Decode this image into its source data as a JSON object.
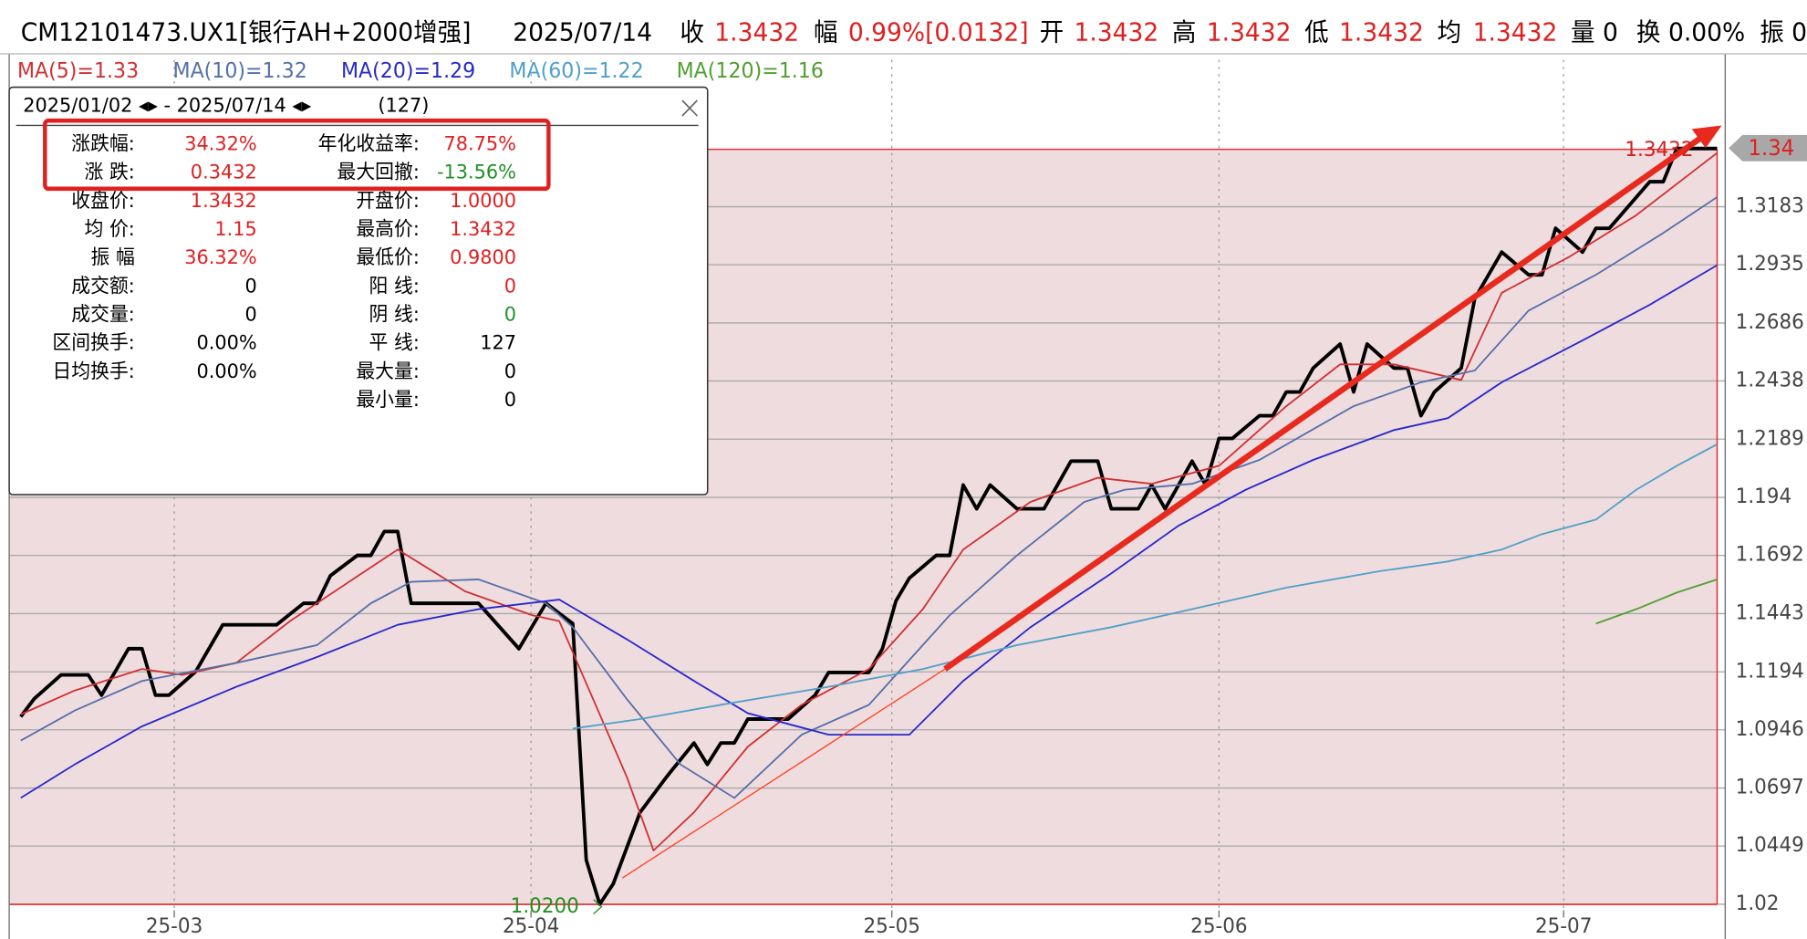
{
  "header": [
    "CM12101473.UX1[银行AH+2000增强]",
    "2025/07/14",
    "收",
    "1.3432",
    "幅",
    "0.99%[0.0132]",
    "开",
    "1.3432",
    "高",
    "1.3432",
    "低",
    "1.3432",
    "均",
    "1.3432",
    "量 0",
    "换 0.00%",
    "振 0"
  ],
  "panel": {
    "title": "2025/01/02 ◂▸ - 2025/07/14 ◂▸",
    "count": "(127)",
    "rows": [
      [
        "涨跌幅:",
        "34.32%",
        "年化收益率:",
        "78.75%"
      ],
      [
        "涨  跌:",
        "0.3432",
        "最大回撤:",
        "-13.56%"
      ],
      [
        "收盘价:",
        "1.3432",
        "开盘价:",
        "1.0000"
      ],
      [
        "均  价:",
        "1.15",
        "最高价:",
        "1.3432"
      ],
      [
        "振  幅",
        "36.32%",
        "最低价:",
        "0.9800"
      ],
      [
        "成交额:",
        "0",
        "阳  线:",
        "0"
      ],
      [
        "成交量:",
        "0",
        "阴  线:",
        "0"
      ],
      [
        "区间换手:",
        "0.00%",
        "平  线:",
        "127"
      ],
      [
        "日均换手:",
        "0.00%",
        "最大量:",
        "0"
      ],
      [
        "最小量:",
        "0"
      ]
    ]
  },
  "chart_data": {
    "type": "line",
    "xlim": [
      -0.86,
      126
    ],
    "xticks": [
      {
        "value": 11.4,
        "label": "25-03"
      },
      {
        "value": 37.9,
        "label": "25-04"
      },
      {
        "value": 64.7,
        "label": "25-05"
      },
      {
        "value": 89.0,
        "label": "25-06"
      },
      {
        "value": 114.6,
        "label": "25-07"
      }
    ],
    "ylim": [
      1.0174,
      1.3684
    ],
    "yticks": [
      1.02,
      1.0449,
      1.0697,
      1.0946,
      1.1194,
      1.1443,
      1.1692,
      1.194,
      1.2189,
      1.2438,
      1.2686,
      1.2935,
      1.3183
    ],
    "grid": true,
    "annotations": [
      "1.3432",
      "1.0200",
      "1.34"
    ],
    "series": [
      {
        "color": "#000000",
        "x": [
          0,
          1,
          3,
          5,
          6,
          8,
          9,
          10,
          11,
          13,
          15,
          19,
          21,
          22,
          23,
          25,
          26,
          27,
          28,
          29,
          34,
          37,
          39,
          41,
          42,
          43,
          44,
          46,
          48,
          50,
          51,
          52,
          53,
          54,
          57,
          59,
          60,
          63,
          64,
          65,
          66,
          68,
          69,
          70,
          71,
          72,
          74,
          76,
          78,
          80,
          81,
          83,
          84,
          85,
          87,
          88,
          89,
          90,
          92,
          93,
          94,
          95,
          96,
          98,
          99,
          100,
          102,
          103,
          104,
          105,
          107,
          108,
          110,
          112,
          113,
          114,
          116,
          117,
          118,
          121,
          122,
          123,
          125,
          126
        ],
        "values": [
          1.1002,
          1.1079,
          1.1181,
          1.1181,
          1.1094,
          1.1293,
          1.1293,
          1.1094,
          1.1094,
          1.1196,
          1.1395,
          1.1395,
          1.1487,
          1.1487,
          1.1605,
          1.1692,
          1.1692,
          1.1794,
          1.1794,
          1.1487,
          1.1487,
          1.1293,
          1.1487,
          1.14,
          1.0389,
          1.02,
          1.0287,
          1.0593,
          1.0747,
          1.089,
          1.0798,
          1.089,
          1.089,
          1.0992,
          1.0992,
          1.1094,
          1.1191,
          1.1191,
          1.1293,
          1.1497,
          1.1595,
          1.1692,
          1.1692,
          1.1993,
          1.1891,
          1.1993,
          1.1891,
          1.1891,
          1.2095,
          1.2095,
          1.1891,
          1.1891,
          1.1993,
          1.1891,
          1.2095,
          1.1993,
          1.2192,
          1.2192,
          1.2289,
          1.2289,
          1.2391,
          1.2391,
          1.2493,
          1.2596,
          1.2391,
          1.2596,
          1.2493,
          1.2493,
          1.2289,
          1.2391,
          1.2493,
          1.279,
          1.2989,
          1.2892,
          1.2892,
          1.3091,
          1.2989,
          1.3091,
          1.3091,
          1.329,
          1.329,
          1.3432,
          1.3432,
          1.3432
        ]
      },
      {
        "name": "MA(5)=1.33",
        "color": "#d03030",
        "x": [
          0,
          4,
          9,
          12,
          16,
          20,
          24,
          28,
          33,
          38,
          40,
          45,
          47,
          50,
          54,
          58,
          63,
          67,
          70,
          75,
          80,
          84,
          89,
          94,
          98,
          102,
          107,
          110,
          115,
          120,
          126
        ],
        "values": [
          1.1012,
          1.1114,
          1.1206,
          1.1181,
          1.1232,
          1.1411,
          1.1564,
          1.1717,
          1.1538,
          1.1436,
          1.1411,
          1.0747,
          1.043,
          1.0593,
          1.0874,
          1.1053,
          1.1206,
          1.1462,
          1.1717,
          1.1921,
          1.2024,
          1.1998,
          1.2075,
          1.233,
          1.2509,
          1.2509,
          1.2442,
          1.2815,
          1.2968,
          1.3147,
          1.3413
        ]
      },
      {
        "name": "MA(10)=1.32",
        "color": "#5570a8",
        "x": [
          0,
          4,
          9,
          16,
          22,
          26,
          29,
          34,
          39,
          41,
          45,
          49,
          53,
          58,
          63,
          69,
          74,
          79,
          82,
          87,
          92,
          99,
          104,
          108,
          112,
          117,
          122,
          126
        ],
        "values": [
          1.09,
          1.1028,
          1.1155,
          1.1232,
          1.1308,
          1.1487,
          1.1579,
          1.1589,
          1.1487,
          1.1385,
          1.1079,
          1.0798,
          1.0655,
          1.0925,
          1.1053,
          1.1436,
          1.1692,
          1.1921,
          1.1973,
          1.1998,
          1.21,
          1.233,
          1.2432,
          1.2483,
          1.2739,
          1.2892,
          1.3071,
          1.3224
        ]
      },
      {
        "name": "MA(20)=1.29",
        "color": "#2828c8",
        "x": [
          0,
          4,
          9,
          16,
          22,
          28,
          34,
          40,
          45,
          50,
          54,
          60,
          66,
          70,
          75,
          81,
          86,
          91,
          96,
          102,
          106,
          110,
          116,
          121,
          126
        ],
        "values": [
          1.0655,
          1.0798,
          1.0961,
          1.113,
          1.1257,
          1.1395,
          1.1462,
          1.1503,
          1.1334,
          1.1155,
          1.1017,
          1.0925,
          1.0925,
          1.1155,
          1.1385,
          1.1615,
          1.1819,
          1.1973,
          1.21,
          1.2228,
          1.2279,
          1.2432,
          1.2611,
          1.2764,
          1.2933
        ]
      },
      {
        "name": "MA(60)=1.22",
        "color": "#50a0c8",
        "x": [
          41,
          46,
          53,
          60,
          67,
          74,
          81,
          87,
          94,
          101,
          106,
          110,
          113,
          117,
          120,
          123,
          126
        ],
        "values": [
          1.0951,
          1.0992,
          1.1063,
          1.113,
          1.1206,
          1.1308,
          1.1385,
          1.1462,
          1.1554,
          1.1625,
          1.1666,
          1.1717,
          1.1783,
          1.1845,
          1.1973,
          1.2075,
          1.2167
        ]
      },
      {
        "name": "MA(120)=1.16",
        "color": "#50a030",
        "x": [
          117,
          120,
          123,
          126
        ],
        "values": [
          1.14,
          1.1462,
          1.1533,
          1.1589
        ]
      }
    ]
  }
}
